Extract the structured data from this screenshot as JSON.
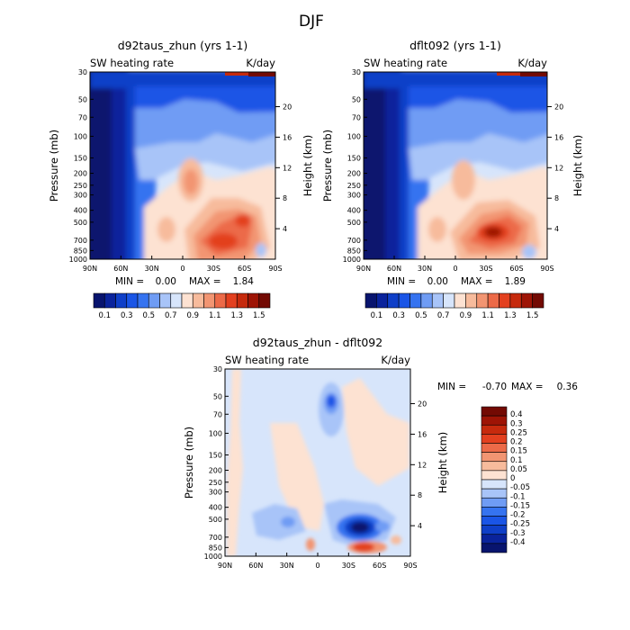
{
  "figure": {
    "title": "DJF"
  },
  "colors": {
    "full_scale": [
      "#08146e",
      "#0a239c",
      "#0f3fc8",
      "#1a55e6",
      "#3573f0",
      "#6f9cf4",
      "#a8c4f8",
      "#d7e5fb",
      "#fde2d2",
      "#f7bb9c",
      "#f29572",
      "#ec6a48",
      "#e3401f",
      "#c62a0d",
      "#9e1405",
      "#730a03"
    ],
    "diff_scale": [
      "#08146e",
      "#0a239c",
      "#0f3fc8",
      "#1a55e6",
      "#3573f0",
      "#6f9cf4",
      "#a8c4f8",
      "#d7e5fb",
      "#fde2d2",
      "#f7bb9c",
      "#f29572",
      "#ec6a48",
      "#e3401f",
      "#c62a0d",
      "#9e1405",
      "#730a03"
    ]
  },
  "chart_data": [
    {
      "type": "heatmap",
      "title": "d92taus_zhun (yrs 1-1)",
      "subtitle_left": "SW heating rate",
      "subtitle_right": "K/day",
      "xlabel": "",
      "ylabel": "Pressure (mb)",
      "y2label": "Height (km)",
      "x_ticks": [
        "90N",
        "60N",
        "30N",
        "0",
        "30S",
        "60S",
        "90S"
      ],
      "x_range": [
        90,
        -90
      ],
      "y_ticks": [
        "30",
        "50",
        "70",
        "100",
        "150",
        "200",
        "250",
        "300",
        "400",
        "500",
        "700",
        "850",
        "1000"
      ],
      "y_tick_values": [
        30,
        50,
        70,
        100,
        150,
        200,
        250,
        300,
        400,
        500,
        700,
        850,
        1000
      ],
      "y_range": [
        30,
        1000
      ],
      "height_ticks": [
        "20",
        "16",
        "12",
        "8",
        "4"
      ],
      "height_values": [
        20,
        16,
        12,
        8,
        4
      ],
      "min_label": "MIN =",
      "min_value": "0.00",
      "max_label": "MAX =",
      "max_value": "1.84",
      "levels": [
        0.1,
        0.2,
        0.3,
        0.4,
        0.5,
        0.6,
        0.7,
        0.8,
        0.9,
        1.0,
        1.1,
        1.2,
        1.3,
        1.4,
        1.5
      ],
      "colorbar_labels": [
        "0.1",
        "0.3",
        "0.5",
        "0.7",
        "0.9",
        "1.1",
        "1.3",
        "1.5"
      ]
    },
    {
      "type": "heatmap",
      "title": "dflt092 (yrs 1-1)",
      "subtitle_left": "SW heating rate",
      "subtitle_right": "K/day",
      "xlabel": "",
      "ylabel": "Pressure (mb)",
      "y2label": "Height (km)",
      "x_ticks": [
        "90N",
        "60N",
        "30N",
        "0",
        "30S",
        "60S",
        "90S"
      ],
      "x_range": [
        90,
        -90
      ],
      "y_ticks": [
        "30",
        "50",
        "70",
        "100",
        "150",
        "200",
        "250",
        "300",
        "400",
        "500",
        "700",
        "850",
        "1000"
      ],
      "y_tick_values": [
        30,
        50,
        70,
        100,
        150,
        200,
        250,
        300,
        400,
        500,
        700,
        850,
        1000
      ],
      "y_range": [
        30,
        1000
      ],
      "height_ticks": [
        "20",
        "16",
        "12",
        "8",
        "4"
      ],
      "height_values": [
        20,
        16,
        12,
        8,
        4
      ],
      "min_label": "MIN =",
      "min_value": "0.00",
      "max_label": "MAX =",
      "max_value": "1.89",
      "levels": [
        0.1,
        0.2,
        0.3,
        0.4,
        0.5,
        0.6,
        0.7,
        0.8,
        0.9,
        1.0,
        1.1,
        1.2,
        1.3,
        1.4,
        1.5
      ],
      "colorbar_labels": [
        "0.1",
        "0.3",
        "0.5",
        "0.7",
        "0.9",
        "1.1",
        "1.3",
        "1.5"
      ]
    },
    {
      "type": "heatmap",
      "title": "d92taus_zhun - dflt092",
      "subtitle_left": "SW heating rate",
      "subtitle_right": "K/day",
      "xlabel": "",
      "ylabel": "Pressure (mb)",
      "y2label": "Height (km)",
      "x_ticks": [
        "90N",
        "60N",
        "30N",
        "0",
        "30S",
        "60S",
        "90S"
      ],
      "x_range": [
        90,
        -90
      ],
      "y_ticks": [
        "30",
        "50",
        "70",
        "100",
        "150",
        "200",
        "250",
        "300",
        "400",
        "500",
        "700",
        "850",
        "1000"
      ],
      "y_tick_values": [
        30,
        50,
        70,
        100,
        150,
        200,
        250,
        300,
        400,
        500,
        700,
        850,
        1000
      ],
      "y_range": [
        30,
        1000
      ],
      "height_ticks": [
        "20",
        "16",
        "12",
        "8",
        "4"
      ],
      "height_values": [
        20,
        16,
        12,
        8,
        4
      ],
      "min_label": "MIN =",
      "min_value": "-0.70",
      "max_label": "MAX =",
      "max_value": "0.36",
      "levels": [
        -0.4,
        -0.3,
        -0.25,
        -0.2,
        -0.15,
        -0.1,
        -0.05,
        0,
        0.05,
        0.1,
        0.15,
        0.2,
        0.25,
        0.3,
        0.4
      ],
      "colorbar_labels": [
        "0.4",
        "0.3",
        "0.25",
        "0.2",
        "0.15",
        "0.1",
        "0.05",
        "0",
        "-0.05",
        "-0.1",
        "-0.15",
        "-0.2",
        "-0.25",
        "-0.3",
        "-0.4"
      ]
    }
  ]
}
